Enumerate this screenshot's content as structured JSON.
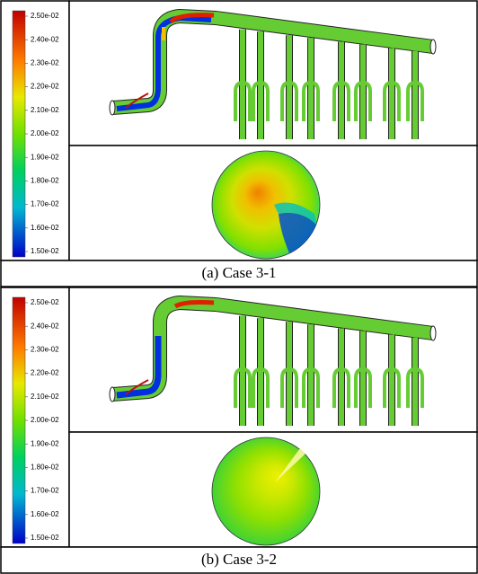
{
  "panels": [
    {
      "colorbar": {
        "labels": [
          "2.50e-02",
          "2.40e-02",
          "2.30e-02",
          "2.20e-02",
          "2.10e-02",
          "2.00e-02",
          "1.90e-02",
          "1.80e-02",
          "1.70e-02",
          "1.60e-02",
          "1.50e-02"
        ]
      },
      "caption": "(a) Case 3-1"
    },
    {
      "colorbar": {
        "labels": [
          "2.50e-02",
          "2.40e-02",
          "2.30e-02",
          "2.20e-02",
          "2.10e-02",
          "2.00e-02",
          "1.90e-02",
          "1.80e-02",
          "1.70e-02",
          "1.60e-02",
          "1.50e-02"
        ]
      },
      "caption": "(b) Case 3-2"
    }
  ]
}
